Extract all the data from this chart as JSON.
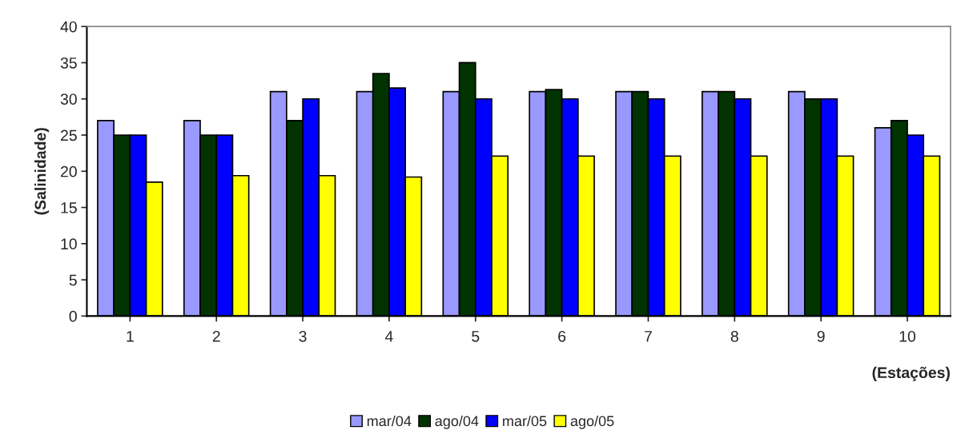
{
  "chart_data": {
    "type": "bar",
    "ylabel": "(Salinidade)",
    "xlabel": "(Estações)",
    "categories": [
      "1",
      "2",
      "3",
      "4",
      "5",
      "6",
      "7",
      "8",
      "9",
      "10"
    ],
    "series": [
      {
        "name": "mar/04",
        "color": "#9999ff",
        "values": [
          27,
          27,
          31,
          31,
          31,
          31,
          31,
          31,
          31,
          26
        ]
      },
      {
        "name": "ago/04",
        "color": "#003300",
        "values": [
          25,
          25,
          27,
          33.5,
          35,
          31.3,
          31,
          31,
          30,
          27
        ]
      },
      {
        "name": "mar/05",
        "color": "#0000ff",
        "values": [
          25,
          25,
          30,
          31.5,
          30,
          30,
          30,
          30,
          30,
          25
        ]
      },
      {
        "name": "ago/05",
        "color": "#ffff00",
        "values": [
          18.5,
          19.4,
          19.4,
          19.2,
          22.1,
          22.1,
          22.1,
          22.1,
          22.1,
          22.1
        ]
      }
    ],
    "ylim": [
      0,
      40
    ],
    "yticks": [
      0,
      5,
      10,
      15,
      20,
      25,
      30,
      35,
      40
    ],
    "grid": false,
    "legend": "bottom"
  }
}
